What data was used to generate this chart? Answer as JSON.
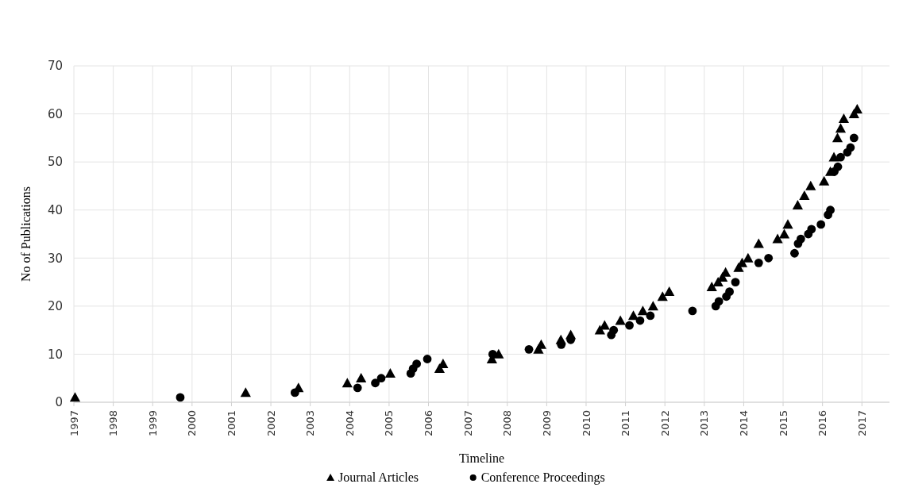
{
  "chart_data": {
    "type": "scatter",
    "xlabel": "Timeline",
    "ylabel": "No of Publications",
    "xlim": [
      1997,
      2017.7
    ],
    "xticks": [
      1997,
      1998,
      1999,
      2000,
      2001,
      2002,
      2003,
      2004,
      2005,
      2006,
      2007,
      2008,
      2009,
      2010,
      2011,
      2012,
      2013,
      2014,
      2015,
      2016,
      2017
    ],
    "ylim": [
      0,
      70
    ],
    "yticks": [
      0,
      10,
      20,
      30,
      40,
      50,
      60,
      70
    ],
    "grid": true,
    "legend": "bottom",
    "series": [
      {
        "name": "Journal Articles",
        "color": "#000000",
        "marker": "triangle",
        "x": [
          1997.03,
          2001.36,
          2002.7,
          2003.94,
          2004.29,
          2005.03,
          2006.28,
          2006.37,
          2007.61,
          2007.78,
          2008.79,
          2008.86,
          2009.36,
          2009.61,
          2010.35,
          2010.47,
          2010.87,
          2011.2,
          2011.44,
          2011.7,
          2011.94,
          2012.11,
          2013.19,
          2013.35,
          2013.46,
          2013.54,
          2013.87,
          2013.96,
          2014.11,
          2014.38,
          2014.86,
          2015.03,
          2015.12,
          2015.37,
          2015.54,
          2015.7,
          2016.04,
          2016.2,
          2016.29,
          2016.38,
          2016.46,
          2016.54,
          2016.8,
          2016.88
        ],
        "values": [
          1,
          2,
          3,
          4,
          5,
          6,
          7,
          8,
          9,
          10,
          11,
          12,
          13,
          14,
          15,
          16,
          17,
          18,
          19,
          20,
          22,
          23,
          24,
          25,
          26,
          27,
          28,
          29,
          30,
          33,
          34,
          35,
          37,
          41,
          43,
          45,
          46,
          48,
          51,
          55,
          57,
          59,
          60,
          61
        ]
      },
      {
        "name": "Conference Proceedings",
        "color": "#000000",
        "marker": "circle",
        "x": [
          1999.7,
          2002.61,
          2004.2,
          2004.65,
          2004.8,
          2005.55,
          2005.61,
          2005.7,
          2005.97,
          2007.63,
          2008.55,
          2009.37,
          2009.61,
          2010.64,
          2010.7,
          2011.1,
          2011.37,
          2011.63,
          2012.7,
          2013.29,
          2013.37,
          2013.56,
          2013.64,
          2013.79,
          2014.38,
          2014.63,
          2015.29,
          2015.38,
          2015.45,
          2015.64,
          2015.72,
          2015.96,
          2016.14,
          2016.2,
          2016.3,
          2016.39,
          2016.46,
          2016.63,
          2016.71,
          2016.8
        ],
        "values": [
          1,
          2,
          3,
          4,
          5,
          6,
          7,
          8,
          9,
          10,
          11,
          12,
          13,
          14,
          15,
          16,
          17,
          18,
          19,
          20,
          21,
          22,
          23,
          25,
          29,
          30,
          31,
          33,
          34,
          35,
          36,
          37,
          39,
          40,
          48,
          49,
          51,
          52,
          53,
          55
        ]
      }
    ]
  }
}
